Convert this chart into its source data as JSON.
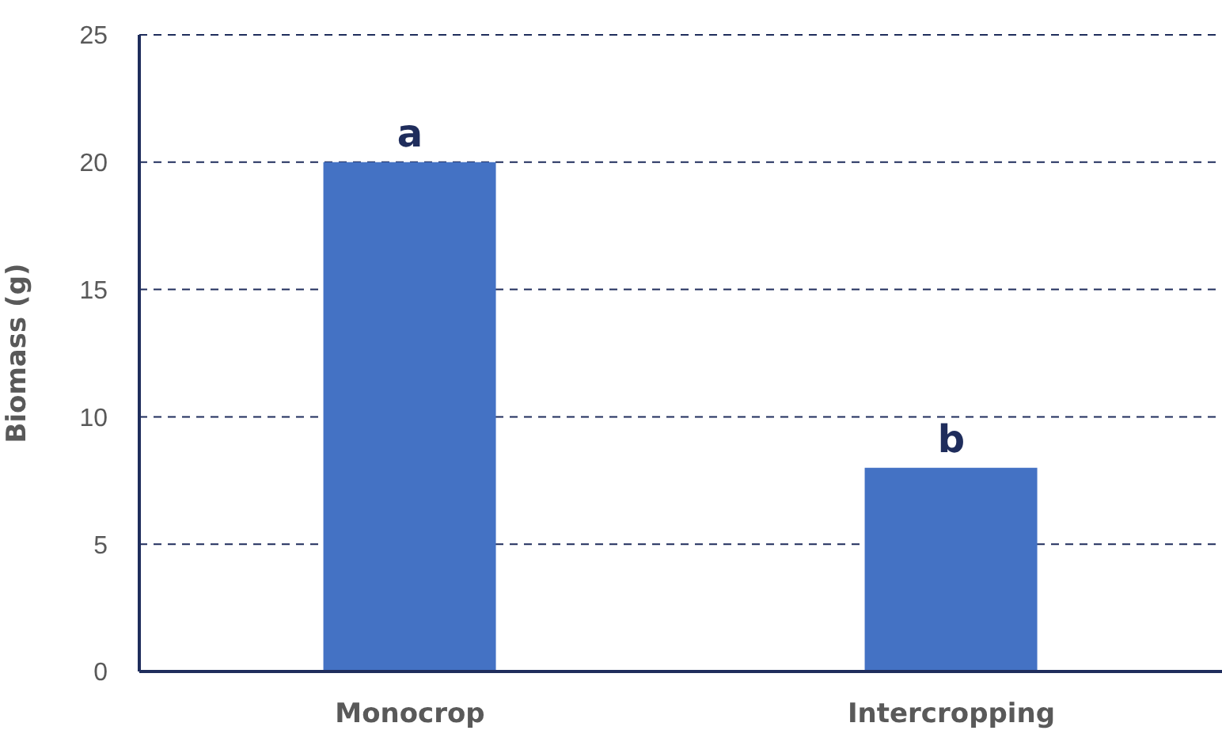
{
  "chart_data": {
    "type": "bar",
    "ylabel": "Biomass (g)",
    "categories": [
      "Monocrop",
      "Intercropping"
    ],
    "values": [
      20,
      8
    ],
    "color": "#4472c4",
    "ylim": [
      0,
      25
    ],
    "yticks": [
      0,
      5,
      10,
      15,
      20,
      25
    ],
    "grid": "y",
    "annotations": [
      {
        "text": "a",
        "x": "Monocrop",
        "y": 20
      },
      {
        "text": "b",
        "x": "Intercropping",
        "y": 8
      }
    ]
  }
}
